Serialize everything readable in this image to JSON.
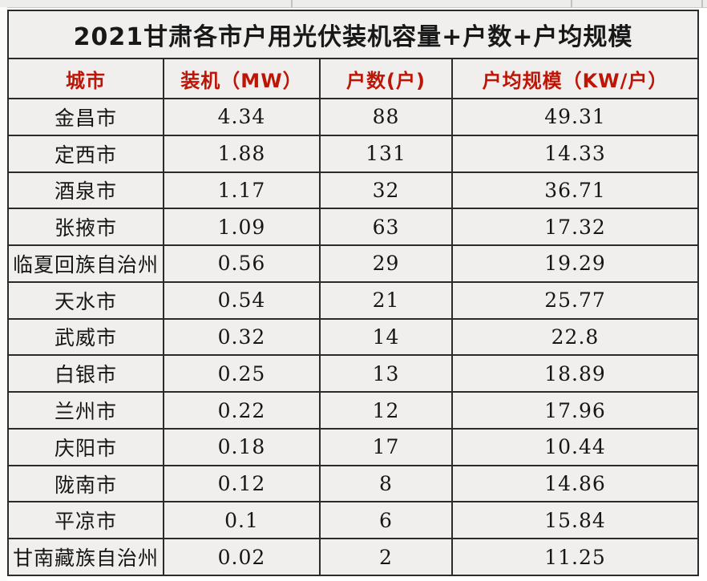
{
  "table": {
    "title": "2021甘肃各市户用光伏装机容量+户数+户均规模",
    "columns": [
      "城市",
      "装机（MW）",
      "户数(户)",
      "户均规模（KW/户）"
    ],
    "rows": [
      {
        "city": "金昌市",
        "capacity_mw": "4.34",
        "households": "88",
        "avg_kw_per_household": "49.31"
      },
      {
        "city": "定西市",
        "capacity_mw": "1.88",
        "households": "131",
        "avg_kw_per_household": "14.33"
      },
      {
        "city": "酒泉市",
        "capacity_mw": "1.17",
        "households": "32",
        "avg_kw_per_household": "36.71"
      },
      {
        "city": "张掖市",
        "capacity_mw": "1.09",
        "households": "63",
        "avg_kw_per_household": "17.32"
      },
      {
        "city": "临夏回族自治州",
        "capacity_mw": "0.56",
        "households": "29",
        "avg_kw_per_household": "19.29"
      },
      {
        "city": "天水市",
        "capacity_mw": "0.54",
        "households": "21",
        "avg_kw_per_household": "25.77"
      },
      {
        "city": "武威市",
        "capacity_mw": "0.32",
        "households": "14",
        "avg_kw_per_household": "22.8"
      },
      {
        "city": "白银市",
        "capacity_mw": "0.25",
        "households": "13",
        "avg_kw_per_household": "18.89"
      },
      {
        "city": "兰州市",
        "capacity_mw": "0.22",
        "households": "12",
        "avg_kw_per_household": "17.96"
      },
      {
        "city": "庆阳市",
        "capacity_mw": "0.18",
        "households": "17",
        "avg_kw_per_household": "10.44"
      },
      {
        "city": "陇南市",
        "capacity_mw": "0.12",
        "households": "8",
        "avg_kw_per_household": "14.86"
      },
      {
        "city": "平凉市",
        "capacity_mw": "0.1",
        "households": "6",
        "avg_kw_per_household": "15.84"
      },
      {
        "city": "甘南藏族自治州",
        "capacity_mw": "0.02",
        "households": "2",
        "avg_kw_per_household": "11.25"
      }
    ]
  },
  "colors": {
    "header_red": "#bd1506",
    "title_black": "#181818",
    "cell_background": "#f0efed",
    "border": "#2b2b2b"
  },
  "chart_data": {
    "type": "table",
    "title": "2021甘肃各市户用光伏装机容量+户数+户均规模",
    "columns": [
      "城市",
      "装机（MW）",
      "户数(户)",
      "户均规模（KW/户）"
    ],
    "rows": [
      [
        "金昌市",
        4.34,
        88,
        49.31
      ],
      [
        "定西市",
        1.88,
        131,
        14.33
      ],
      [
        "酒泉市",
        1.17,
        32,
        36.71
      ],
      [
        "张掖市",
        1.09,
        63,
        17.32
      ],
      [
        "临夏回族自治州",
        0.56,
        29,
        19.29
      ],
      [
        "天水市",
        0.54,
        21,
        25.77
      ],
      [
        "武威市",
        0.32,
        14,
        22.8
      ],
      [
        "白银市",
        0.25,
        13,
        18.89
      ],
      [
        "兰州市",
        0.22,
        12,
        17.96
      ],
      [
        "庆阳市",
        0.18,
        17,
        10.44
      ],
      [
        "陇南市",
        0.12,
        8,
        14.86
      ],
      [
        "平凉市",
        0.1,
        6,
        15.84
      ],
      [
        "甘南藏族自治州",
        0.02,
        2,
        11.25
      ]
    ]
  }
}
